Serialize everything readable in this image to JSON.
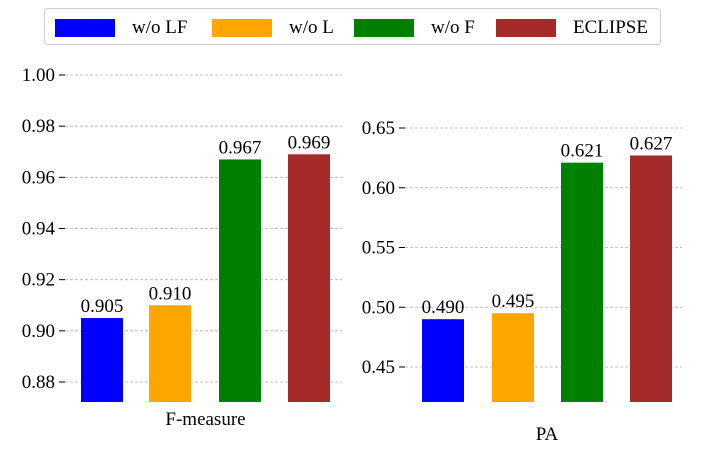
{
  "chart_data": [
    {
      "type": "bar",
      "id": "fmeasure",
      "categories": [
        "w/o LF",
        "w/o L",
        "w/o F",
        "ECLIPSE"
      ],
      "values": [
        0.905,
        0.91,
        0.967,
        0.969
      ],
      "value_labels": [
        "0.905",
        "0.910",
        "0.967",
        "0.969"
      ],
      "xlabel": "F-measure",
      "ylabel": "",
      "ylim": [
        0.873,
        1.0
      ],
      "yticks": [
        0.88,
        0.9,
        0.92,
        0.94,
        0.96,
        0.98,
        1.0
      ],
      "ytick_labels": [
        "0.88",
        "0.90",
        "0.92",
        "0.94",
        "0.96",
        "0.98",
        "1.00"
      ],
      "grid": "y-dashed"
    },
    {
      "type": "bar",
      "id": "pa",
      "categories": [
        "w/o LF",
        "w/o L",
        "w/o F",
        "ECLIPSE"
      ],
      "values": [
        0.49,
        0.495,
        0.621,
        0.627
      ],
      "value_labels": [
        "0.490",
        "0.495",
        "0.621",
        "0.627"
      ],
      "xlabel": "PA",
      "ylabel": "",
      "ylim": [
        0.42,
        0.655
      ],
      "yticks": [
        0.45,
        0.5,
        0.55,
        0.6,
        0.65
      ],
      "ytick_labels": [
        "0.45",
        "0.50",
        "0.55",
        "0.60",
        "0.65"
      ],
      "grid": "y-dashed"
    }
  ],
  "legend": {
    "position": "top",
    "items": [
      {
        "label": "w/o LF",
        "color": "#0000ff"
      },
      {
        "label": "w/o L",
        "color": "#ffa500"
      },
      {
        "label": "w/o F",
        "color": "#008000"
      },
      {
        "label": "ECLIPSE",
        "color": "#a52a2a"
      }
    ]
  }
}
